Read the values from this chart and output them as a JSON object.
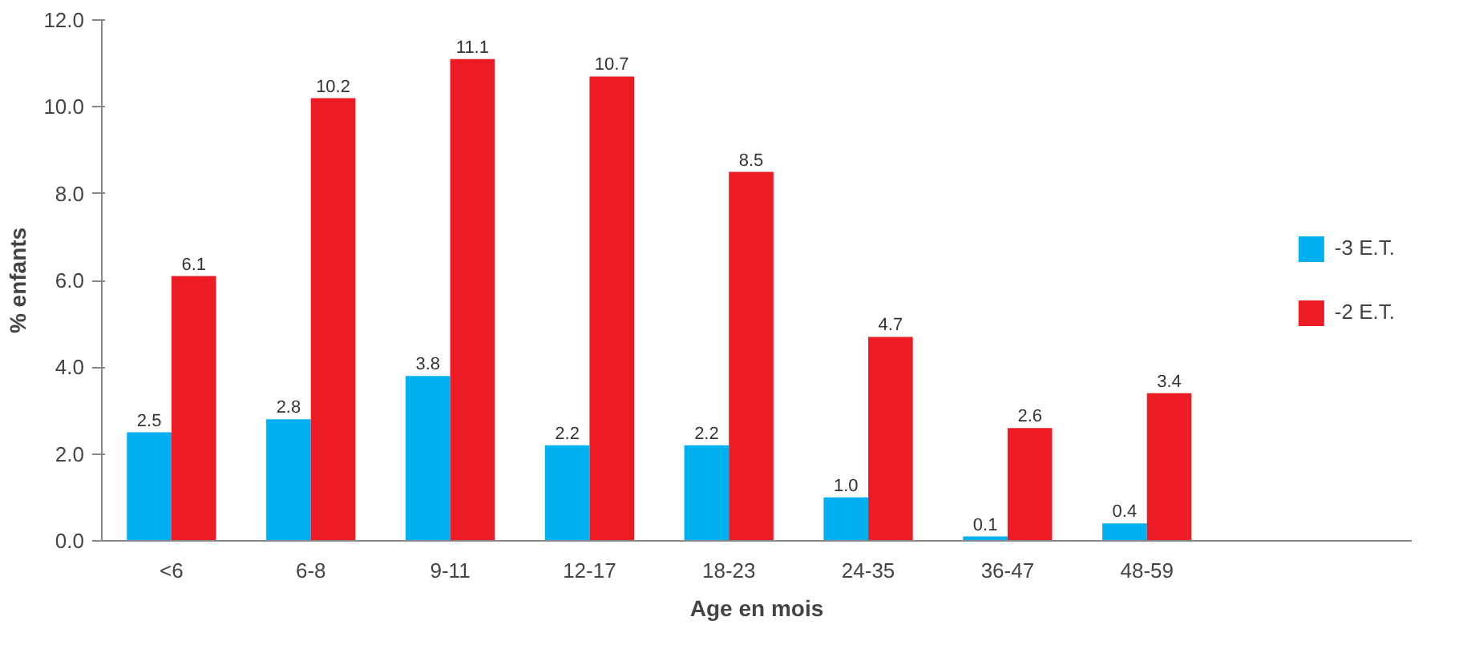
{
  "chart_data": {
    "type": "bar",
    "xlabel": "Age en mois",
    "ylabel": "% enfants",
    "categories": [
      "<6",
      "6-8",
      "9-11",
      "12-17",
      "18-23",
      "24-35",
      "36-47",
      "48-59"
    ],
    "series": [
      {
        "name": "-3 E.T.",
        "color": "#00b0f0",
        "values": [
          2.5,
          2.8,
          3.8,
          2.2,
          2.2,
          1.0,
          0.1,
          0.4
        ],
        "value_labels": [
          "2.5",
          "2.8",
          "3.8",
          "2.2",
          "2.2",
          "1.0",
          "0.1",
          "0.4"
        ]
      },
      {
        "name": "-2 E.T.",
        "color": "#ed1c24",
        "values": [
          6.1,
          10.2,
          11.1,
          10.7,
          8.5,
          4.7,
          2.6,
          3.4
        ],
        "value_labels": [
          "6.1",
          "10.2",
          "11.1",
          "10.7",
          "8.5",
          "4.7",
          "2.6",
          "3.4"
        ]
      }
    ],
    "ylim": [
      0,
      12
    ],
    "yticks": [
      {
        "value": 0,
        "label": "0.0"
      },
      {
        "value": 2,
        "label": "2.0"
      },
      {
        "value": 4,
        "label": "4.0"
      },
      {
        "value": 6,
        "label": "6.0"
      },
      {
        "value": 8,
        "label": "8.0"
      },
      {
        "value": 10,
        "label": "10.0"
      },
      {
        "value": 12,
        "label": "12.0"
      }
    ],
    "grid": false,
    "legend": "right"
  }
}
